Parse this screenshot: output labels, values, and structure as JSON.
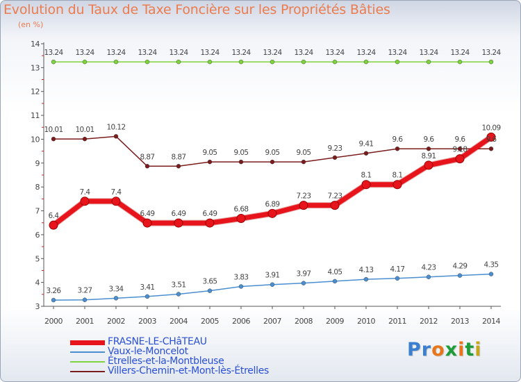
{
  "title": "Evolution du Taux de Taxe Foncière sur les Propriétés Bâties",
  "subtitle": "(en %)",
  "logo": {
    "text": "Proxiti",
    "colors": [
      "#3a7fd0",
      "#3a7fd0",
      "#e8751a",
      "#1e9c3a",
      "#e8751a",
      "#1e9c3a",
      "#c6a61a"
    ]
  },
  "colors": {
    "accent_title": "#ec7b4e",
    "axis": "#555555",
    "tick_minor": "#d02020",
    "label": "#444444",
    "legend_text": "#2a4fd6"
  },
  "chart_data": {
    "type": "line",
    "title": "Evolution du Taux de Taxe Foncière sur les Propriétés Bâties",
    "ylabel": "(en %)",
    "xlabel": "",
    "x": [
      "2000",
      "2001",
      "2002",
      "2003",
      "2004",
      "2005",
      "2006",
      "2007",
      "2008",
      "2009",
      "2010",
      "2011",
      "2012",
      "2013",
      "2014"
    ],
    "ylim": [
      3,
      14
    ],
    "yticks": [
      3,
      4,
      5,
      6,
      7,
      8,
      9,
      10,
      11,
      12,
      13,
      14
    ],
    "grid": false,
    "legend_position": "bottom-left",
    "series": [
      {
        "name": "FRASNE-LE-CHâTEAU",
        "color": "#e8141c",
        "highlight": true,
        "values": [
          6.4,
          7.4,
          7.4,
          6.49,
          6.49,
          6.49,
          6.68,
          6.89,
          7.23,
          7.23,
          8.1,
          8.1,
          8.91,
          9.18,
          10.09
        ],
        "labels": [
          "6.4",
          "7.4",
          "7.4",
          "6.49",
          "6.49",
          "6.49",
          "6.68",
          "6.89",
          "7.23",
          "7.23",
          "8.1",
          "8.1",
          "8.91",
          "9.18",
          "10.09"
        ]
      },
      {
        "name": "Vaux-le-Moncelot",
        "color": "#4a8ed0",
        "highlight": false,
        "values": [
          3.26,
          3.27,
          3.34,
          3.41,
          3.51,
          3.65,
          3.83,
          3.91,
          3.97,
          4.05,
          4.13,
          4.17,
          4.23,
          4.29,
          4.35
        ],
        "labels": [
          "3.26",
          "3.27",
          "3.34",
          "3.41",
          "3.51",
          "3.65",
          "3.83",
          "3.91",
          "3.97",
          "4.05",
          "4.13",
          "4.17",
          "4.23",
          "4.29",
          "4.35"
        ]
      },
      {
        "name": "Étrelles-et-la-Montbleuse",
        "color": "#7dd33c",
        "highlight": false,
        "values": [
          13.24,
          13.24,
          13.24,
          13.24,
          13.24,
          13.24,
          13.24,
          13.24,
          13.24,
          13.24,
          13.24,
          13.24,
          13.24,
          13.24,
          13.24
        ],
        "labels": [
          "13.24",
          "13.24",
          "13.24",
          "13.24",
          "13.24",
          "13.24",
          "13.24",
          "13.24",
          "13.24",
          "13.24",
          "13.24",
          "13.24",
          "13.24",
          "13.24",
          "13.24"
        ]
      },
      {
        "name": "Villers-Chemin-et-Mont-lès-Étrelles",
        "color": "#7a1c1c",
        "highlight": false,
        "values": [
          10.01,
          10.01,
          10.12,
          8.87,
          8.87,
          9.05,
          9.05,
          9.05,
          9.05,
          9.23,
          9.41,
          9.6,
          9.6,
          9.6,
          9.6
        ],
        "labels": [
          "10.01",
          "10.01",
          "10.12",
          "8.87",
          "8.87",
          "9.05",
          "9.05",
          "9.05",
          "9.05",
          "9.23",
          "9.41",
          "9.6",
          "9.6",
          "9.6",
          "9.6"
        ]
      }
    ]
  }
}
